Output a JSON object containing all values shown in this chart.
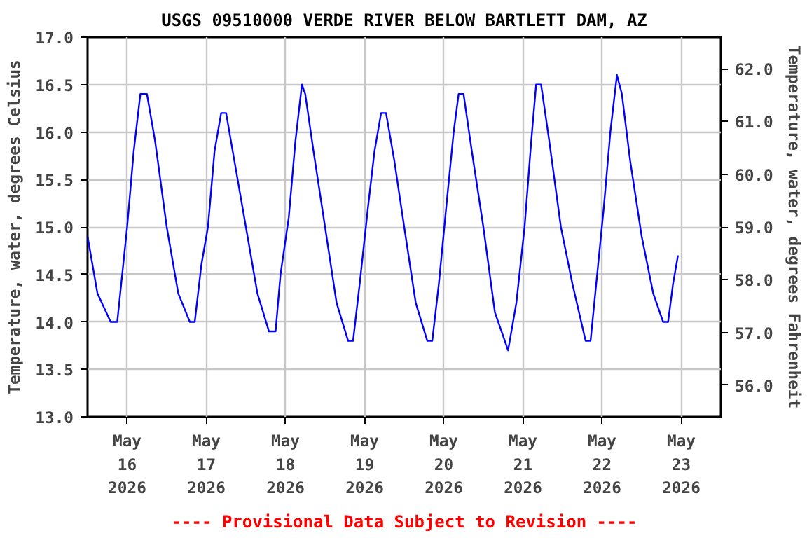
{
  "chart_data": {
    "type": "line",
    "title": "USGS 09510000 VERDE RIVER BELOW BARTLETT DAM, AZ",
    "ylabel": "Temperature, water, degrees Celsius",
    "y2label": "Temperature, water, degrees Fahrenheit",
    "annotations": [
      "---- Provisional Data Subject to Revision ----"
    ],
    "x": [
      "2026-05-15T12:00",
      "2026-05-15T15:00",
      "2026-05-15T19:00",
      "2026-05-15T21:00",
      "2026-05-15T22:30",
      "2026-05-16T00:00",
      "2026-05-16T02:00",
      "2026-05-16T04:00",
      "2026-05-16T06:00",
      "2026-05-16T08:30",
      "2026-05-16T12:00",
      "2026-05-16T15:30",
      "2026-05-16T19:00",
      "2026-05-16T20:30",
      "2026-05-16T22:30",
      "2026-05-17T00:30",
      "2026-05-17T02:30",
      "2026-05-17T04:30",
      "2026-05-17T06:00",
      "2026-05-17T08:30",
      "2026-05-17T12:00",
      "2026-05-17T15:30",
      "2026-05-17T19:00",
      "2026-05-17T21:00",
      "2026-05-17T22:30",
      "2026-05-18T01:00",
      "2026-05-18T03:00",
      "2026-05-18T05:00",
      "2026-05-18T06:00",
      "2026-05-18T08:30",
      "2026-05-18T12:00",
      "2026-05-18T15:30",
      "2026-05-18T19:00",
      "2026-05-18T20:30",
      "2026-05-18T22:30",
      "2026-05-19T01:00",
      "2026-05-19T03:00",
      "2026-05-19T05:00",
      "2026-05-19T06:30",
      "2026-05-19T09:00",
      "2026-05-19T12:00",
      "2026-05-19T15:30",
      "2026-05-19T19:00",
      "2026-05-19T20:30",
      "2026-05-19T22:30",
      "2026-05-20T01:00",
      "2026-05-20T03:00",
      "2026-05-20T04:30",
      "2026-05-20T06:00",
      "2026-05-20T08:30",
      "2026-05-20T12:00",
      "2026-05-20T15:30",
      "2026-05-20T19:30",
      "2026-05-20T22:00",
      "2026-05-21T00:30",
      "2026-05-21T02:30",
      "2026-05-21T04:00",
      "2026-05-21T05:30",
      "2026-05-21T08:00",
      "2026-05-21T11:30",
      "2026-05-21T15:00",
      "2026-05-21T19:00",
      "2026-05-21T20:30",
      "2026-05-21T22:30",
      "2026-05-22T00:30",
      "2026-05-22T02:30",
      "2026-05-22T04:30",
      "2026-05-22T06:00",
      "2026-05-22T08:30",
      "2026-05-22T12:00",
      "2026-05-22T15:30",
      "2026-05-22T18:30",
      "2026-05-22T20:00",
      "2026-05-22T21:30",
      "2026-05-22T23:00"
    ],
    "series": [
      {
        "color": "#0000ff",
        "values": [
          14.9,
          14.3,
          14.0,
          14.0,
          14.5,
          15.0,
          15.8,
          16.4,
          16.4,
          15.9,
          15.0,
          14.3,
          14.0,
          14.0,
          14.6,
          15.0,
          15.8,
          16.2,
          16.2,
          15.7,
          15.0,
          14.3,
          13.9,
          13.9,
          14.5,
          15.1,
          15.9,
          16.5,
          16.4,
          15.8,
          15.0,
          14.2,
          13.8,
          13.8,
          14.4,
          15.2,
          15.8,
          16.2,
          16.2,
          15.7,
          15.0,
          14.2,
          13.8,
          13.8,
          14.4,
          15.3,
          16.0,
          16.4,
          16.4,
          15.8,
          15.0,
          14.1,
          13.7,
          14.2,
          15.0,
          15.9,
          16.5,
          16.5,
          15.9,
          15.0,
          14.4,
          13.8,
          13.8,
          14.5,
          15.2,
          16.0,
          16.6,
          16.4,
          15.7,
          14.9,
          14.3,
          14.0,
          14.0,
          14.4,
          14.7
        ]
      }
    ],
    "xlim": [
      "2026-05-15T12:00",
      "2026-05-23T12:00"
    ],
    "xticks": [
      {
        "value": "2026-05-16",
        "label": "May\n16\n2026"
      },
      {
        "value": "2026-05-17",
        "label": "May\n17\n2026"
      },
      {
        "value": "2026-05-18",
        "label": "May\n18\n2026"
      },
      {
        "value": "2026-05-19",
        "label": "May\n19\n2026"
      },
      {
        "value": "2026-05-20",
        "label": "May\n20\n2026"
      },
      {
        "value": "2026-05-21",
        "label": "May\n21\n2026"
      },
      {
        "value": "2026-05-22",
        "label": "May\n22\n2026"
      },
      {
        "value": "2026-05-23",
        "label": "May\n23\n2026"
      }
    ],
    "ylim": [
      13.0,
      17.0
    ],
    "yticks": [
      {
        "value": 13.0,
        "label": "13.0"
      },
      {
        "value": 13.5,
        "label": "13.5"
      },
      {
        "value": 14.0,
        "label": "14.0"
      },
      {
        "value": 14.5,
        "label": "14.5"
      },
      {
        "value": 15.0,
        "label": "15.0"
      },
      {
        "value": 15.5,
        "label": "15.5"
      },
      {
        "value": 16.0,
        "label": "16.0"
      },
      {
        "value": 16.5,
        "label": "16.5"
      },
      {
        "value": 17.0,
        "label": "17.0"
      }
    ],
    "y2lim": [
      55.4,
      62.6
    ],
    "y2ticks": [
      {
        "value": 56,
        "label": "56.0"
      },
      {
        "value": 57,
        "label": "57.0"
      },
      {
        "value": 58,
        "label": "58.0"
      },
      {
        "value": 59,
        "label": "59.0"
      },
      {
        "value": 60,
        "label": "60.0"
      },
      {
        "value": 61,
        "label": "61.0"
      },
      {
        "value": 62,
        "label": "62.0"
      }
    ],
    "grid": true,
    "line_style": "solid"
  }
}
